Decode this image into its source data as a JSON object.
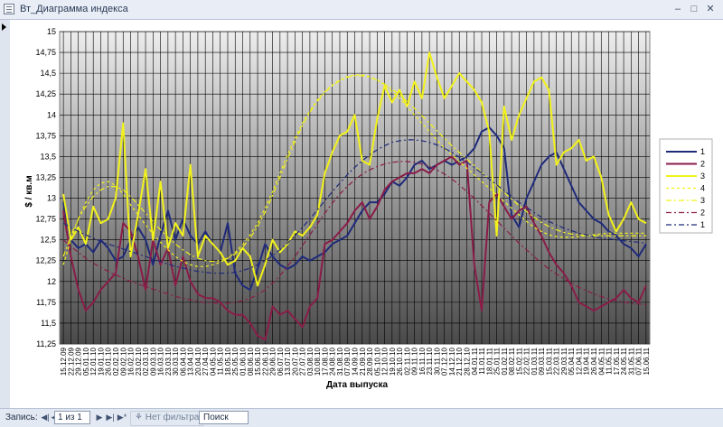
{
  "window": {
    "title": "Вт_Диаграмма индекса"
  },
  "status": {
    "record_label": "Запись:",
    "position": "1 из 1",
    "filter_label": "Нет фильтра",
    "search_label": "Поиск"
  },
  "chart_data": {
    "type": "line",
    "title": "",
    "xlabel": "Дата выпуска",
    "ylabel": "$ / кв.м",
    "ylim": [
      11.25,
      15
    ],
    "yticks": [
      "11,25",
      "11,5",
      "11,75",
      "12",
      "12,25",
      "12,5",
      "12,75",
      "13",
      "13,25",
      "13,5",
      "13,75",
      "14",
      "14,25",
      "14,5",
      "14,75",
      "15"
    ],
    "x_labels": [
      "15.12.09",
      "22.12.09",
      "29.12.09",
      "05.01.10",
      "12.01.10",
      "19.01.10",
      "26.01.10",
      "02.02.10",
      "09.02.10",
      "16.02.10",
      "23.02.10",
      "02.03.10",
      "09.03.10",
      "16.03.10",
      "23.03.10",
      "30.03.10",
      "06.04.10",
      "13.04.10",
      "20.04.10",
      "27.04.10",
      "04.05.10",
      "11.05.10",
      "18.05.10",
      "25.05.10",
      "01.06.10",
      "08.06.10",
      "15.06.10",
      "22.06.10",
      "29.06.10",
      "06.07.10",
      "13.07.10",
      "20.07.10",
      "27.07.10",
      "03.08.10",
      "10.08.10",
      "17.08.10",
      "24.08.10",
      "31.08.10",
      "07.09.10",
      "14.09.10",
      "21.09.10",
      "28.09.10",
      "05.10.10",
      "12.10.10",
      "19.10.10",
      "26.10.10",
      "02.11.10",
      "09.11.10",
      "16.11.10",
      "23.11.10",
      "30.11.10",
      "07.12.10",
      "14.12.10",
      "21.12.10",
      "28.12.10",
      "04.01.11",
      "11.01.11",
      "18.01.11",
      "25.01.11",
      "01.02.11",
      "08.02.11",
      "15.02.11",
      "22.02.11",
      "01.03.11",
      "09.03.11",
      "15.03.11",
      "22.03.11",
      "29.03.11",
      "05.04.11",
      "12.04.11",
      "19.04.11",
      "26.04.11",
      "04.05.11",
      "11.05.11",
      "17.05.11",
      "24.05.11",
      "31.05.11",
      "07.06.11",
      "15.06.11"
    ],
    "grid": true,
    "legend": "right",
    "series": [
      {
        "name": "1",
        "color": "#1f2a7a",
        "width": 2,
        "dash": "",
        "values": [
          12.95,
          12.5,
          12.4,
          12.45,
          12.35,
          12.5,
          12.4,
          12.25,
          12.3,
          12.5,
          12.65,
          12.5,
          12.2,
          12.55,
          12.85,
          12.5,
          12.75,
          12.55,
          12.45,
          12.6,
          12.45,
          12.35,
          12.7,
          12.1,
          11.95,
          11.9,
          12.15,
          12.45,
          12.3,
          12.2,
          12.15,
          12.2,
          12.3,
          12.25,
          12.3,
          12.35,
          12.45,
          12.5,
          12.55,
          12.7,
          12.85,
          12.95,
          12.95,
          13.05,
          13.2,
          13.15,
          13.25,
          13.4,
          13.45,
          13.35,
          13.4,
          13.45,
          13.4,
          13.45,
          13.5,
          13.6,
          13.8,
          13.85,
          13.75,
          13.6,
          12.8,
          12.65,
          13.0,
          13.2,
          13.4,
          13.5,
          13.55,
          13.35,
          13.15,
          12.95,
          12.85,
          12.75,
          12.7,
          12.6,
          12.55,
          12.45,
          12.4,
          12.3,
          12.45
        ]
      },
      {
        "name": "2",
        "color": "#8a1c48",
        "width": 2,
        "dash": "",
        "values": [
          12.85,
          12.3,
          11.9,
          11.65,
          11.75,
          11.9,
          12.0,
          12.1,
          12.7,
          12.6,
          12.3,
          11.9,
          12.5,
          12.2,
          12.4,
          11.95,
          12.3,
          12.0,
          11.85,
          11.8,
          11.8,
          11.75,
          11.65,
          11.6,
          11.6,
          11.5,
          11.35,
          11.3,
          11.7,
          11.6,
          11.65,
          11.55,
          11.45,
          11.7,
          11.8,
          12.45,
          12.5,
          12.6,
          12.7,
          12.85,
          12.95,
          12.75,
          12.9,
          13.1,
          13.2,
          13.25,
          13.3,
          13.3,
          13.35,
          13.3,
          13.4,
          13.45,
          13.5,
          13.4,
          13.45,
          12.2,
          11.65,
          12.95,
          13.05,
          12.9,
          12.75,
          12.85,
          12.9,
          12.7,
          12.55,
          12.35,
          12.2,
          12.1,
          11.95,
          11.75,
          11.7,
          11.65,
          11.7,
          11.75,
          11.8,
          11.9,
          11.8,
          11.75,
          11.95
        ]
      },
      {
        "name": "3",
        "color": "#f2f21a",
        "width": 2,
        "dash": "",
        "values": [
          13.05,
          12.5,
          12.65,
          12.45,
          12.9,
          12.7,
          12.75,
          13.0,
          13.9,
          12.3,
          12.8,
          13.35,
          12.5,
          13.2,
          12.4,
          12.7,
          12.55,
          13.4,
          12.3,
          12.55,
          12.45,
          12.35,
          12.2,
          12.25,
          12.4,
          12.3,
          11.95,
          12.2,
          12.5,
          12.35,
          12.45,
          12.6,
          12.55,
          12.65,
          12.8,
          13.3,
          13.55,
          13.75,
          13.8,
          14.0,
          13.45,
          13.4,
          13.95,
          14.35,
          14.15,
          14.3,
          14.1,
          14.4,
          14.2,
          14.75,
          14.45,
          14.2,
          14.35,
          14.5,
          14.4,
          14.3,
          14.15,
          13.8,
          12.55,
          14.1,
          13.7,
          14.0,
          14.2,
          14.4,
          14.45,
          14.3,
          13.4,
          13.55,
          13.6,
          13.7,
          13.45,
          13.5,
          13.25,
          12.8,
          12.6,
          12.75,
          12.95,
          12.75,
          12.7
        ]
      },
      {
        "name": "4",
        "color": "#f2f21a",
        "width": 1.2,
        "dash": "3,3",
        "values": [
          12.2,
          12.5,
          12.75,
          12.95,
          13.1,
          13.18,
          13.2,
          13.15,
          13.05,
          12.92,
          12.8,
          12.68,
          12.57,
          12.47,
          12.38,
          12.3,
          12.24,
          12.2,
          12.18,
          12.18,
          12.2,
          12.23,
          12.28,
          12.35,
          12.44,
          12.56,
          12.7,
          12.88,
          13.08,
          13.3,
          13.52,
          13.72,
          13.9,
          14.05,
          14.18,
          14.28,
          14.36,
          14.42,
          14.46,
          14.48,
          14.48,
          14.46,
          14.42,
          14.36,
          14.28,
          14.2,
          14.1,
          14.0,
          13.9,
          13.8,
          13.7,
          13.6,
          13.52,
          13.44,
          13.36,
          13.28,
          13.2,
          13.12,
          13.04,
          12.96,
          12.88,
          12.8,
          12.72,
          12.65,
          12.6,
          12.56,
          12.54,
          12.53,
          12.53,
          12.54,
          12.55,
          12.56,
          12.57,
          12.58,
          12.58,
          12.58,
          12.58,
          12.58,
          12.58
        ]
      },
      {
        "name": "3",
        "color": "#f2f21a",
        "width": 1.2,
        "dash": "6,3,2,3",
        "values": [
          12.3,
          12.55,
          12.75,
          12.9,
          13.02,
          13.1,
          13.14,
          13.14,
          13.1,
          13.02,
          12.92,
          12.82,
          12.72,
          12.62,
          12.53,
          12.45,
          12.38,
          12.32,
          12.28,
          12.25,
          12.24,
          12.25,
          12.28,
          12.33,
          12.41,
          12.52,
          12.66,
          12.83,
          13.03,
          13.25,
          13.47,
          13.68,
          13.87,
          14.03,
          14.16,
          14.27,
          14.35,
          14.41,
          14.45,
          14.47,
          14.47,
          14.45,
          14.42,
          14.37,
          14.31,
          14.24,
          14.16,
          14.08,
          13.99,
          13.9,
          13.81,
          13.72,
          13.63,
          13.55,
          13.47,
          13.39,
          13.31,
          13.23,
          13.15,
          13.07,
          12.99,
          12.91,
          12.84,
          12.77,
          12.71,
          12.66,
          12.62,
          12.59,
          12.57,
          12.56,
          12.55,
          12.55,
          12.55,
          12.55,
          12.55,
          12.55,
          12.55,
          12.55,
          12.55
        ]
      },
      {
        "name": "2",
        "color": "#8a1c48",
        "width": 1.2,
        "dash": "6,3,2,3",
        "values": [
          12.5,
          12.42,
          12.35,
          12.28,
          12.22,
          12.17,
          12.12,
          12.08,
          12.04,
          12.0,
          11.97,
          11.94,
          11.91,
          11.88,
          11.85,
          11.82,
          11.8,
          11.78,
          11.76,
          11.75,
          11.74,
          11.74,
          11.74,
          11.75,
          11.77,
          11.8,
          11.84,
          11.9,
          11.98,
          12.07,
          12.18,
          12.3,
          12.43,
          12.56,
          12.69,
          12.82,
          12.94,
          13.05,
          13.14,
          13.22,
          13.29,
          13.34,
          13.38,
          13.41,
          13.43,
          13.44,
          13.44,
          13.43,
          13.41,
          13.38,
          13.34,
          13.29,
          13.23,
          13.16,
          13.08,
          13.0,
          12.91,
          12.82,
          12.73,
          12.64,
          12.55,
          12.46,
          12.38,
          12.3,
          12.22,
          12.15,
          12.09,
          12.03,
          11.98,
          11.93,
          11.89,
          11.85,
          11.82,
          11.79,
          11.77,
          11.75,
          11.74,
          11.73,
          11.72
        ]
      },
      {
        "name": "1",
        "color": "#1f2a7a",
        "width": 1.2,
        "dash": "6,3,2,3",
        "values": [
          12.7,
          12.65,
          12.6,
          12.56,
          12.52,
          12.48,
          12.45,
          12.42,
          12.39,
          12.36,
          12.33,
          12.3,
          12.27,
          12.24,
          12.21,
          12.18,
          12.16,
          12.14,
          12.12,
          12.11,
          12.1,
          12.1,
          12.1,
          12.11,
          12.13,
          12.16,
          12.2,
          12.25,
          12.31,
          12.38,
          12.46,
          12.55,
          12.65,
          12.75,
          12.86,
          12.97,
          13.08,
          13.18,
          13.28,
          13.37,
          13.45,
          13.52,
          13.58,
          13.63,
          13.67,
          13.69,
          13.7,
          13.7,
          13.69,
          13.67,
          13.64,
          13.6,
          13.55,
          13.49,
          13.43,
          13.37,
          13.3,
          13.23,
          13.16,
          13.09,
          13.02,
          12.95,
          12.89,
          12.83,
          12.77,
          12.72,
          12.68,
          12.64,
          12.61,
          12.58,
          12.56,
          12.54,
          12.52,
          12.51,
          12.5,
          12.49,
          12.48,
          12.47,
          12.46
        ]
      }
    ]
  }
}
